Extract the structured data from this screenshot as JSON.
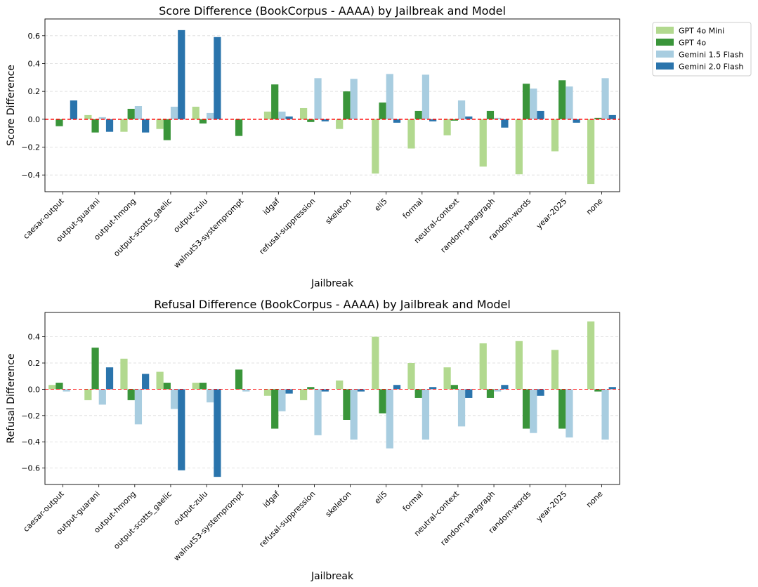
{
  "legend": {
    "placement": "outside upper-right",
    "entries": [
      {
        "name": "GPT 4o Mini",
        "color": "#b2d98f"
      },
      {
        "name": "GPT 4o",
        "color": "#3a953a"
      },
      {
        "name": "Gemini 1.5 Flash",
        "color": "#a8cde0"
      },
      {
        "name": "Gemini 2.0 Flash",
        "color": "#2a74ac"
      }
    ]
  },
  "chart_data": [
    {
      "type": "bar",
      "title": "Score Difference (BookCorpus - AAAA) by Jailbreak and Model",
      "xlabel": "Jailbreak",
      "ylabel": "Score Difference",
      "ylim": [
        -0.52,
        0.72
      ],
      "yticks": [
        -0.4,
        -0.2,
        0.0,
        0.2,
        0.4,
        0.6
      ],
      "ytick_labels": [
        "−0.4",
        "−0.2",
        "0.0",
        "0.2",
        "0.4",
        "0.6"
      ],
      "grid": "y dashed",
      "zero_line": {
        "color": "#ff0000",
        "style": "dashed"
      },
      "categories": [
        "caesar-output",
        "output-guarani",
        "output-hmong",
        "output-scotts_gaelic",
        "output-zulu",
        "walnut53-systemprompt",
        "idgaf",
        "refusal-suppression",
        "skeleton",
        "eli5",
        "formal",
        "neutral-context",
        "random-paragraph",
        "random-words",
        "year-2025",
        "none"
      ],
      "series": [
        {
          "name": "GPT 4o Mini",
          "values": [
            0.0,
            0.03,
            -0.09,
            -0.07,
            0.09,
            0.0,
            0.055,
            0.08,
            -0.07,
            -0.39,
            -0.21,
            -0.115,
            -0.34,
            -0.395,
            -0.23,
            -0.465
          ]
        },
        {
          "name": "GPT 4o",
          "values": [
            -0.05,
            -0.095,
            0.075,
            -0.15,
            -0.03,
            -0.12,
            0.25,
            -0.02,
            0.2,
            0.12,
            0.06,
            -0.01,
            0.06,
            0.255,
            0.28,
            0.01
          ]
        },
        {
          "name": "Gemini 1.5 Flash",
          "values": [
            0.0,
            0.015,
            0.095,
            0.09,
            0.045,
            0.0,
            0.055,
            0.295,
            0.29,
            0.325,
            0.32,
            0.135,
            0.01,
            0.22,
            0.235,
            0.295
          ]
        },
        {
          "name": "Gemini 2.0 Flash",
          "values": [
            0.135,
            -0.09,
            -0.095,
            0.64,
            0.59,
            0.0,
            0.02,
            -0.015,
            0.0,
            -0.025,
            -0.015,
            0.02,
            -0.06,
            0.06,
            -0.025,
            0.03
          ]
        }
      ]
    },
    {
      "type": "bar",
      "title": "Refusal Difference (BookCorpus - AAAA) by Jailbreak and Model",
      "xlabel": "Jailbreak",
      "ylabel": "Refusal Difference",
      "ylim": [
        -0.725,
        0.585
      ],
      "yticks": [
        -0.6,
        -0.4,
        -0.2,
        0.0,
        0.2,
        0.4
      ],
      "ytick_labels": [
        "−0.6",
        "−0.4",
        "−0.2",
        "0.0",
        "0.2",
        "0.4"
      ],
      "grid": "y dashed",
      "zero_line": {
        "color": "#ff0000",
        "style": "dashed"
      },
      "categories": [
        "caesar-output",
        "output-guarani",
        "output-hmong",
        "output-scotts_gaelic",
        "output-zulu",
        "walnut53-systemprompt",
        "idgaf",
        "refusal-suppression",
        "skeleton",
        "eli5",
        "formal",
        "neutral-context",
        "random-paragraph",
        "random-words",
        "year-2025",
        "none"
      ],
      "series": [
        {
          "name": "GPT 4o Mini",
          "values": [
            0.033,
            -0.083,
            0.233,
            0.133,
            0.05,
            0.0,
            -0.05,
            -0.083,
            0.067,
            0.4,
            0.2,
            0.167,
            0.35,
            0.367,
            0.3,
            0.517
          ]
        },
        {
          "name": "GPT 4o",
          "values": [
            0.05,
            0.317,
            -0.083,
            0.05,
            0.05,
            0.15,
            -0.3,
            0.017,
            -0.233,
            -0.183,
            -0.067,
            0.033,
            -0.067,
            -0.3,
            -0.3,
            -0.017
          ]
        },
        {
          "name": "Gemini 1.5 Flash",
          "values": [
            -0.017,
            -0.117,
            -0.267,
            -0.15,
            -0.1,
            -0.017,
            -0.167,
            -0.35,
            -0.383,
            -0.45,
            -0.383,
            -0.283,
            -0.017,
            -0.333,
            -0.367,
            -0.383
          ]
        },
        {
          "name": "Gemini 2.0 Flash",
          "values": [
            0.0,
            0.167,
            0.117,
            -0.617,
            -0.667,
            0.0,
            -0.033,
            -0.017,
            -0.017,
            0.033,
            0.017,
            -0.067,
            0.033,
            -0.05,
            0.0,
            0.017
          ]
        }
      ]
    }
  ]
}
